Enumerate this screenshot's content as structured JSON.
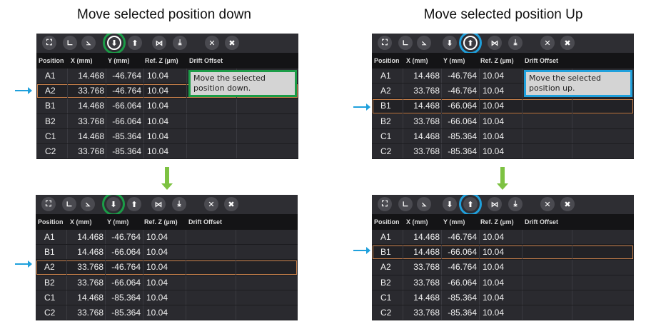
{
  "titles": {
    "left": "Move selected position down",
    "right": "Move selected position Up"
  },
  "colors": {
    "highlight_down": "#1b9c47",
    "highlight_up": "#1fa0dc",
    "selected_row": "#c8804a",
    "arrow_flow": "#7dc242",
    "arrow_pointer": "#1fa0dc"
  },
  "toolbar_icons": [
    "select-region-icon",
    "axis-icon",
    "axis-diagonal-icon",
    "move-down-icon",
    "move-up-icon",
    "mirror-icon",
    "download-icon",
    "close-icon",
    "delete-icon"
  ],
  "columns": [
    "Position",
    "X (mm)",
    "Y (mm)",
    "Ref. Z (µm)",
    "Drift Offset"
  ],
  "panels": [
    {
      "id": "down-before",
      "highlight": "move-down",
      "highlight_color": "green",
      "tooltip": "Move the selected position down.",
      "selected": 1,
      "rows": [
        [
          "A1",
          "14.468",
          "-46.764",
          "10.04"
        ],
        [
          "A2",
          "33.768",
          "-46.764",
          "10.04"
        ],
        [
          "B1",
          "14.468",
          "-66.064",
          "10.04"
        ],
        [
          "B2",
          "33.768",
          "-66.064",
          "10.04"
        ],
        [
          "C1",
          "14.468",
          "-85.364",
          "10.04"
        ],
        [
          "C2",
          "33.768",
          "-85.364",
          "10.04"
        ]
      ]
    },
    {
      "id": "down-after",
      "highlight": "move-down",
      "highlight_color": "green",
      "tooltip": null,
      "selected": 2,
      "rows": [
        [
          "A1",
          "14.468",
          "-46.764",
          "10.04"
        ],
        [
          "B1",
          "14.468",
          "-66.064",
          "10.04"
        ],
        [
          "A2",
          "33.768",
          "-46.764",
          "10.04"
        ],
        [
          "B2",
          "33.768",
          "-66.064",
          "10.04"
        ],
        [
          "C1",
          "14.468",
          "-85.364",
          "10.04"
        ],
        [
          "C2",
          "33.768",
          "-85.364",
          "10.04"
        ]
      ]
    },
    {
      "id": "up-before",
      "highlight": "move-up",
      "highlight_color": "blue",
      "tooltip": "Move the selected position up.",
      "selected": 2,
      "rows": [
        [
          "A1",
          "14.468",
          "-46.764",
          "10.04"
        ],
        [
          "A2",
          "33.768",
          "-46.764",
          "10.04"
        ],
        [
          "B1",
          "14.468",
          "-66.064",
          "10.04"
        ],
        [
          "B2",
          "33.768",
          "-66.064",
          "10.04"
        ],
        [
          "C1",
          "14.468",
          "-85.364",
          "10.04"
        ],
        [
          "C2",
          "33.768",
          "-85.364",
          "10.04"
        ]
      ]
    },
    {
      "id": "up-after",
      "highlight": "move-up",
      "highlight_color": "blue",
      "tooltip": null,
      "selected": 1,
      "rows": [
        [
          "A1",
          "14.468",
          "-46.764",
          "10.04"
        ],
        [
          "B1",
          "14.468",
          "-66.064",
          "10.04"
        ],
        [
          "A2",
          "33.768",
          "-46.764",
          "10.04"
        ],
        [
          "B2",
          "33.768",
          "-66.064",
          "10.04"
        ],
        [
          "C1",
          "14.468",
          "-85.364",
          "10.04"
        ],
        [
          "C2",
          "33.768",
          "-85.364",
          "10.04"
        ]
      ]
    }
  ]
}
